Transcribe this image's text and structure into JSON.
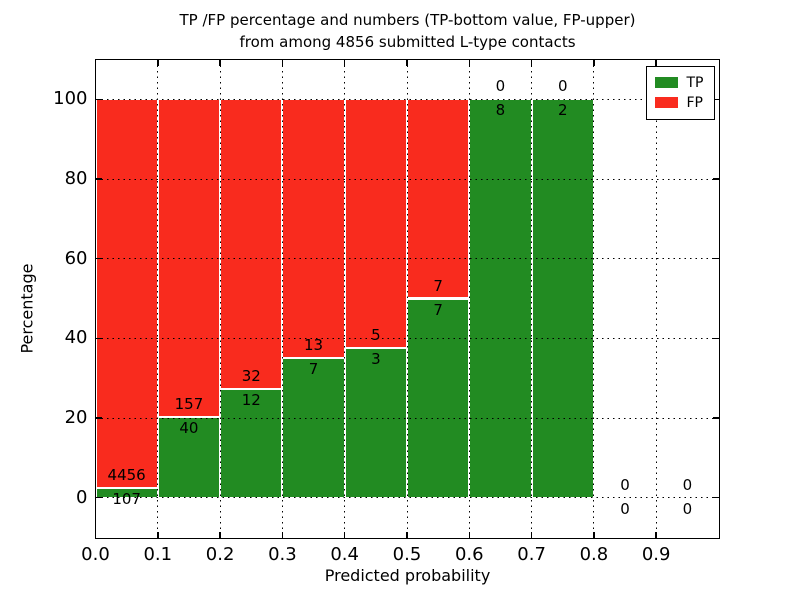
{
  "chart_data": {
    "type": "bar",
    "stacked": true,
    "title_lines": [
      "TP /FP percentage and numbers (TP-bottom value, FP-upper)",
      "from among 4856 submitted L-type contacts"
    ],
    "total_contacts": 4856,
    "xlabel": "Predicted probability",
    "ylabel": "Percentage",
    "xlim": [
      0,
      1
    ],
    "ylim": [
      -10,
      110
    ],
    "grid": true,
    "grid_style": "dotted",
    "x_ticks": [
      "0.0",
      "0.1",
      "0.2",
      "0.3",
      "0.4",
      "0.5",
      "0.6",
      "0.7",
      "0.8",
      "0.9"
    ],
    "y_ticks": [
      "0",
      "20",
      "40",
      "60",
      "80",
      "100"
    ],
    "colors": {
      "tp": "#228b22",
      "fp": "#f92b1e",
      "grid": "#000000",
      "text": "#000000"
    },
    "legend": {
      "position": "upper right",
      "items": [
        {
          "label": "TP",
          "color": "#228b22"
        },
        {
          "label": "FP",
          "color": "#f92b1e"
        }
      ]
    },
    "bins": [
      {
        "x0": 0.0,
        "x1": 0.1,
        "tp": 107,
        "fp": 4456,
        "tp_pct": 2.34
      },
      {
        "x0": 0.1,
        "x1": 0.2,
        "tp": 40,
        "fp": 157,
        "tp_pct": 20.3
      },
      {
        "x0": 0.2,
        "x1": 0.3,
        "tp": 12,
        "fp": 32,
        "tp_pct": 27.27
      },
      {
        "x0": 0.3,
        "x1": 0.4,
        "tp": 7,
        "fp": 13,
        "tp_pct": 35.0
      },
      {
        "x0": 0.4,
        "x1": 0.5,
        "tp": 3,
        "fp": 5,
        "tp_pct": 37.5
      },
      {
        "x0": 0.5,
        "x1": 0.6,
        "tp": 7,
        "fp": 7,
        "tp_pct": 50.0
      },
      {
        "x0": 0.6,
        "x1": 0.7,
        "tp": 8,
        "fp": 0,
        "tp_pct": 100.0
      },
      {
        "x0": 0.7,
        "x1": 0.8,
        "tp": 2,
        "fp": 0,
        "tp_pct": 100.0
      },
      {
        "x0": 0.8,
        "x1": 0.9,
        "tp": 0,
        "fp": 0,
        "tp_pct": 0.0
      },
      {
        "x0": 0.9,
        "x1": 1.0,
        "tp": 0,
        "fp": 0,
        "tp_pct": 0.0
      }
    ]
  }
}
